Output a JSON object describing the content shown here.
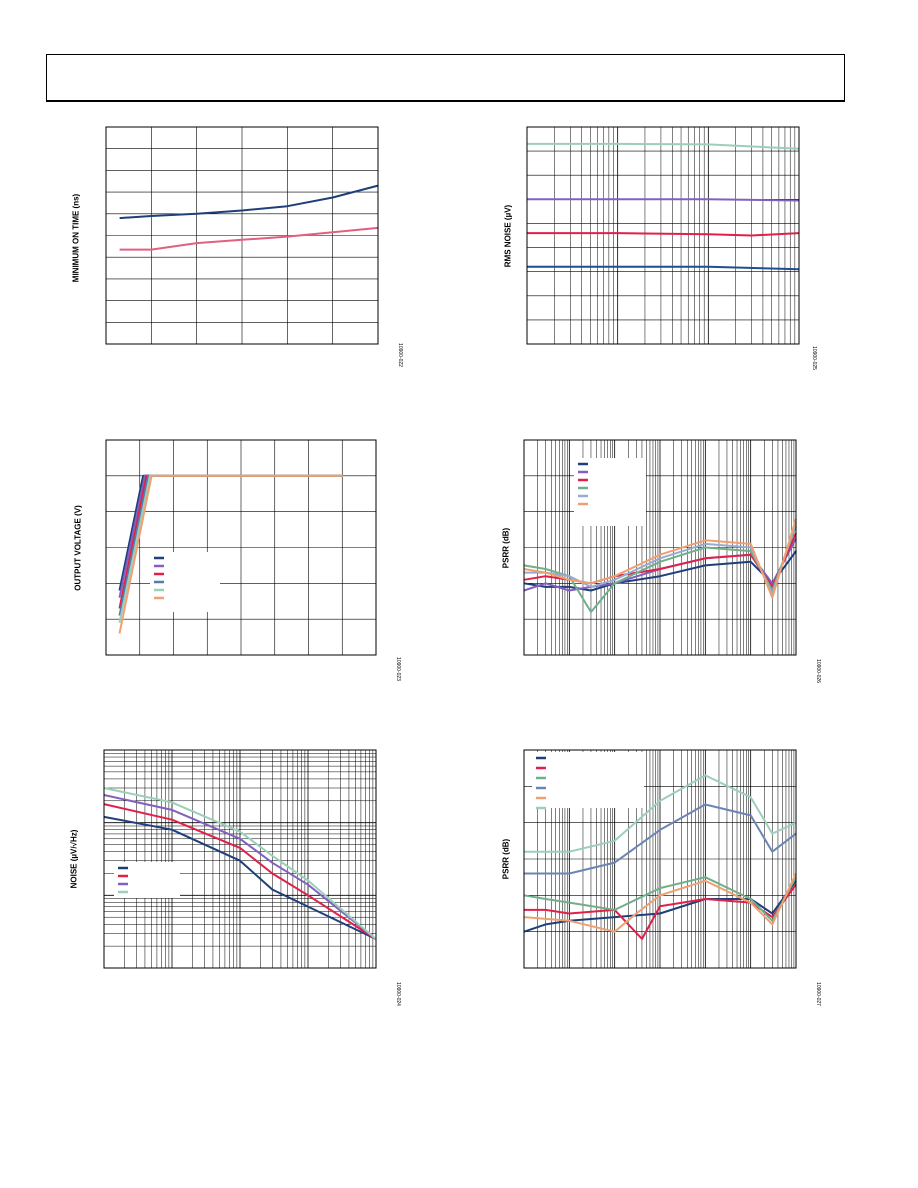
{
  "page": {},
  "chart_data": [
    {
      "type": "line",
      "ylabel": "MINIMUM ON TIME (ns)",
      "figure_id": "10900-022",
      "grid": true,
      "xlim": [
        0,
        6
      ],
      "ylim": [
        0,
        10
      ],
      "color_blue": "#1f3f7a",
      "color_red": "#e06080",
      "series": [
        {
          "color": "#1f3f7a",
          "x": [
            0.3,
            1,
            2,
            3,
            4,
            5,
            6
          ],
          "y": [
            5.8,
            5.9,
            6.0,
            6.15,
            6.35,
            6.75,
            7.3
          ]
        },
        {
          "color": "#e06080",
          "x": [
            0.3,
            1,
            2,
            3,
            4,
            5,
            6
          ],
          "y": [
            4.35,
            4.35,
            4.65,
            4.8,
            4.95,
            5.15,
            5.35
          ]
        }
      ]
    },
    {
      "type": "line",
      "ylabel": "RMS NOISE (µV)",
      "figure_id": "10900-025",
      "grid": true,
      "xscale": "log",
      "xlim": [
        1,
        1000
      ],
      "ylim": [
        0,
        9
      ],
      "series": [
        {
          "color": "#9ccfb8",
          "x": [
            1,
            3,
            10,
            100,
            1000
          ],
          "y": [
            8.3,
            8.3,
            8.3,
            8.28,
            8.1
          ]
        },
        {
          "color": "#8060c0",
          "x": [
            1,
            10,
            100,
            1000
          ],
          "y": [
            6.0,
            6.0,
            6.0,
            5.95
          ]
        },
        {
          "color": "#e0204a",
          "x": [
            1,
            10,
            100,
            300,
            1000
          ],
          "y": [
            4.6,
            4.6,
            4.55,
            4.5,
            4.6
          ]
        },
        {
          "color": "#1f4f8f",
          "x": [
            1,
            10,
            100,
            1000
          ],
          "y": [
            3.2,
            3.2,
            3.2,
            3.1
          ]
        }
      ]
    },
    {
      "type": "line",
      "ylabel": "OUTPUT VOLTAGE (V)",
      "figure_id": "10900-023",
      "grid": true,
      "xlim": [
        0,
        8
      ],
      "ylim": [
        0,
        6
      ],
      "series": [
        {
          "color": "#1f3f7a",
          "x": [
            0.4,
            1.1,
            7
          ],
          "y": [
            1.8,
            5.0,
            5.0
          ]
        },
        {
          "color": "#8060c0",
          "x": [
            0.4,
            1.15,
            7
          ],
          "y": [
            1.6,
            5.0,
            5.0
          ]
        },
        {
          "color": "#e0204a",
          "x": [
            0.4,
            1.2,
            7
          ],
          "y": [
            1.3,
            5.0,
            5.0
          ]
        },
        {
          "color": "#4f7fb0",
          "x": [
            0.4,
            1.25,
            7
          ],
          "y": [
            1.1,
            5.0,
            5.0
          ]
        },
        {
          "color": "#9ccfb8",
          "x": [
            0.4,
            1.3,
            7
          ],
          "y": [
            0.9,
            5.0,
            5.0
          ]
        },
        {
          "color": "#f0a070",
          "x": [
            0.4,
            1.35,
            7
          ],
          "y": [
            0.6,
            5.0,
            5.0
          ]
        }
      ]
    },
    {
      "type": "line",
      "ylabel": "PSRR (dB)",
      "figure_id": "10900-026",
      "grid": true,
      "xscale": "log",
      "xlim": [
        10,
        10000000
      ],
      "ylim": [
        -120,
        0
      ],
      "series": [
        {
          "color": "#1f3f7a",
          "x": [
            10,
            30,
            100,
            300,
            1000,
            10000,
            100000,
            1000000,
            3000000,
            10000000
          ],
          "y": [
            -80,
            -82,
            -82,
            -84,
            -80,
            -76,
            -70,
            -68,
            -80,
            -62
          ]
        },
        {
          "color": "#8060c0",
          "x": [
            10,
            30,
            100,
            300,
            1000,
            10000,
            100000,
            1000000,
            3000000,
            10000000
          ],
          "y": [
            -84,
            -80,
            -84,
            -82,
            -80,
            -72,
            -66,
            -64,
            -80,
            -55
          ]
        },
        {
          "color": "#e0204a",
          "x": [
            10,
            30,
            100,
            300,
            1000,
            10000,
            100000,
            1000000,
            3000000,
            10000000
          ],
          "y": [
            -78,
            -76,
            -78,
            -80,
            -76,
            -72,
            -66,
            -64,
            -82,
            -52
          ]
        },
        {
          "color": "#6fb08a",
          "x": [
            10,
            30,
            100,
            300,
            1000,
            10000,
            100000,
            1000000,
            3000000,
            10000000
          ],
          "y": [
            -70,
            -72,
            -76,
            -96,
            -80,
            -68,
            -60,
            -62,
            -84,
            -48
          ]
        },
        {
          "color": "#9aaad0",
          "x": [
            10,
            30,
            100,
            300,
            1000,
            10000,
            100000,
            1000000,
            3000000,
            10000000
          ],
          "y": [
            -74,
            -74,
            -76,
            -82,
            -78,
            -66,
            -58,
            -60,
            -86,
            -46
          ]
        },
        {
          "color": "#f0a070",
          "x": [
            10,
            30,
            100,
            300,
            1000,
            10000,
            100000,
            1000000,
            3000000,
            10000000
          ],
          "y": [
            -72,
            -74,
            -78,
            -80,
            -76,
            -64,
            -56,
            -58,
            -88,
            -44
          ]
        }
      ]
    },
    {
      "type": "line",
      "ylabel": "NOISE (µV/√Hz)",
      "figure_id": "10900-024",
      "grid": true,
      "xscale": "log",
      "yscale": "log",
      "xlim": [
        10,
        100000
      ],
      "ylim": [
        0.01,
        10
      ],
      "series": [
        {
          "color": "#1f3f7a",
          "x": [
            10,
            100,
            1000,
            3000,
            10000,
            100000
          ],
          "y": [
            1.2,
            0.8,
            0.3,
            0.12,
            0.07,
            0.025
          ]
        },
        {
          "color": "#e0204a",
          "x": [
            10,
            100,
            1000,
            3000,
            10000,
            100000
          ],
          "y": [
            1.8,
            1.1,
            0.45,
            0.2,
            0.1,
            0.025
          ]
        },
        {
          "color": "#8060c0",
          "x": [
            10,
            100,
            1000,
            3000,
            10000,
            100000
          ],
          "y": [
            2.4,
            1.5,
            0.6,
            0.28,
            0.14,
            0.025
          ]
        },
        {
          "color": "#9ccfb8",
          "x": [
            10,
            100,
            1000,
            3000,
            10000,
            100000
          ],
          "y": [
            3.0,
            1.9,
            0.75,
            0.35,
            0.16,
            0.025
          ]
        }
      ]
    },
    {
      "type": "line",
      "ylabel": "PSRR (dB)",
      "figure_id": "10900-027",
      "grid": true,
      "xscale": "log",
      "xlim": [
        10,
        10000000
      ],
      "ylim": [
        -120,
        0
      ],
      "series": [
        {
          "color": "#1f3f7a",
          "x": [
            10,
            30,
            100,
            1000,
            10000,
            100000,
            1000000,
            3000000,
            10000000
          ],
          "y": [
            -100,
            -96,
            -94,
            -92,
            -90,
            -82,
            -82,
            -90,
            -72
          ]
        },
        {
          "color": "#e0204a",
          "x": [
            10,
            30,
            100,
            1000,
            4000,
            10000,
            100000,
            1000000,
            3000000,
            10000000
          ],
          "y": [
            -88,
            -88,
            -90,
            -88,
            -104,
            -86,
            -82,
            -84,
            -92,
            -74
          ]
        },
        {
          "color": "#6fb08a",
          "x": [
            10,
            30,
            100,
            1000,
            10000,
            100000,
            1000000,
            3000000,
            10000000
          ],
          "y": [
            -80,
            -82,
            -84,
            -88,
            -76,
            -70,
            -82,
            -94,
            -70
          ]
        },
        {
          "color": "#6a85b5",
          "x": [
            10,
            100,
            1000,
            10000,
            100000,
            1000000,
            3000000,
            10000000
          ],
          "y": [
            -68,
            -68,
            -62,
            -44,
            -30,
            -36,
            -56,
            -46
          ]
        },
        {
          "color": "#f0a070",
          "x": [
            10,
            100,
            1000,
            3000,
            10000,
            100000,
            1000000,
            3000000,
            10000000
          ],
          "y": [
            -92,
            -94,
            -100,
            -90,
            -80,
            -72,
            -84,
            -96,
            -68
          ]
        },
        {
          "color": "#9ccfb8",
          "x": [
            10,
            100,
            1000,
            10000,
            100000,
            1000000,
            3000000,
            10000000
          ],
          "y": [
            -56,
            -56,
            -50,
            -28,
            -14,
            -26,
            -46,
            -40
          ]
        }
      ]
    }
  ]
}
